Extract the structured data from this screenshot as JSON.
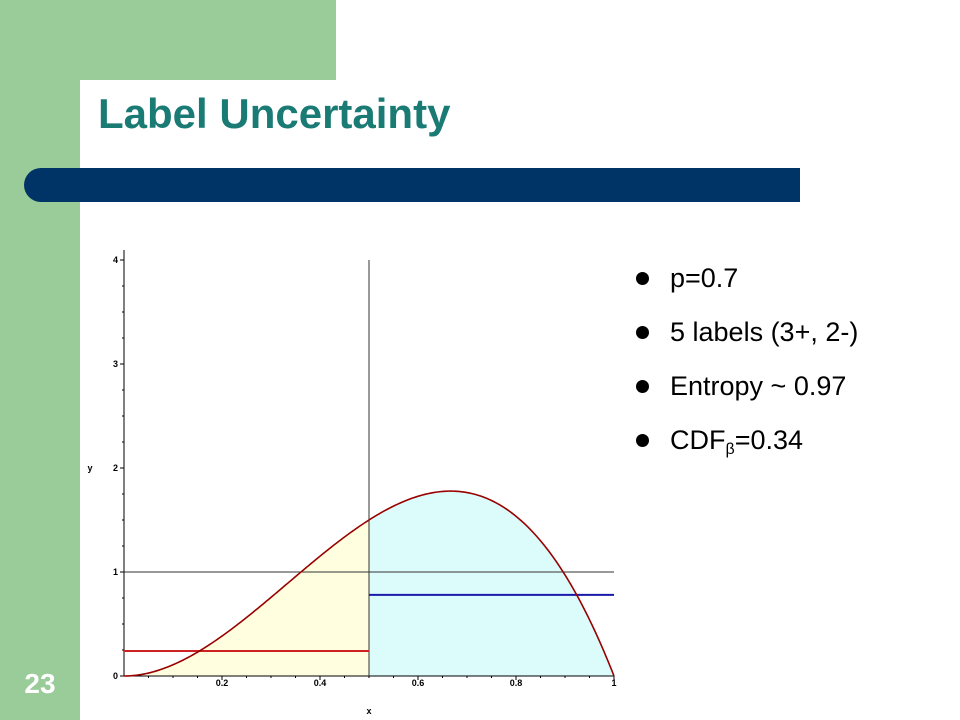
{
  "slide": {
    "title": "Label Uncertainty",
    "number": "23"
  },
  "bullets": [
    {
      "text": "p=0.7"
    },
    {
      "text": "5 labels (3+, 2-)"
    },
    {
      "text": "Entropy ~ 0.97"
    },
    {
      "text": "CDF",
      "subscript": "β",
      "suffix": "=0.34"
    }
  ],
  "chart_data": {
    "type": "line",
    "title": "",
    "xlabel": "x",
    "ylabel": "y",
    "xlim": [
      0,
      1
    ],
    "ylim": [
      0,
      4
    ],
    "x_ticks": [
      "0.2",
      "0.4",
      "0.6",
      "0.8",
      "1"
    ],
    "y_ticks": [
      "0",
      "1",
      "2",
      "3",
      "4"
    ],
    "grid": false,
    "curve": {
      "name": "",
      "distribution": "beta",
      "alpha": 3,
      "beta": 2,
      "color": "#990000"
    },
    "split_x": 0.5,
    "shaded_regions": [
      {
        "x_range": [
          0,
          0.5
        ],
        "color": "#ffffe0"
      },
      {
        "x_range": [
          0.5,
          1
        ],
        "color": "#dcfcfc"
      }
    ],
    "horizontal_lines": [
      {
        "y": 1,
        "x_range": [
          0,
          1
        ],
        "color": "#333333"
      },
      {
        "y": 0.24,
        "x_range": [
          0,
          0.5
        ],
        "color": "#cc2222"
      },
      {
        "y": 0.78,
        "x_range": [
          0.5,
          1
        ],
        "color": "#1a1aaa"
      }
    ]
  }
}
